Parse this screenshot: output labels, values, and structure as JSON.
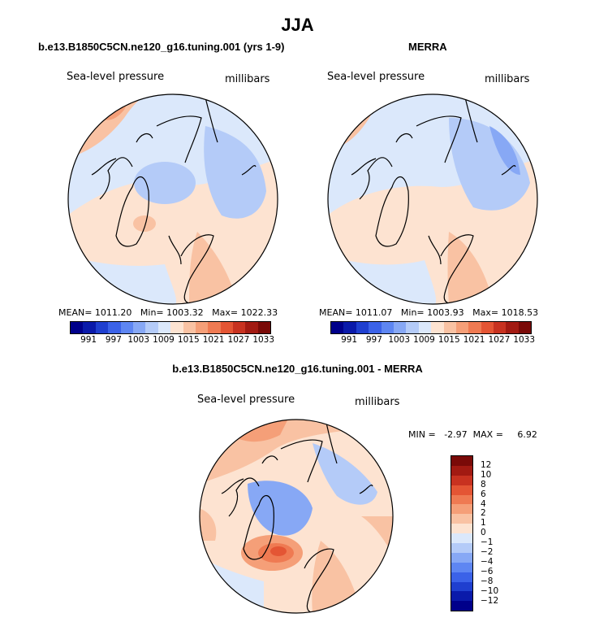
{
  "title": "JJA",
  "panels": [
    {
      "id": "model",
      "title": "b.e13.B1850C5CN.ne120_g16.tuning.001 (yrs 1-9)",
      "variable": "Sea-level pressure",
      "units": "millibars",
      "stats": {
        "mean": "MEAN= 1011.20",
        "min": "Min= 1003.32",
        "max": "Max= 1022.33"
      }
    },
    {
      "id": "obs",
      "title": "MERRA",
      "variable": "Sea-level pressure",
      "units": "millibars",
      "stats": {
        "mean": "MEAN= 1011.07",
        "min": "Min= 1003.93",
        "max": "Max= 1018.53"
      }
    },
    {
      "id": "diff",
      "title": "b.e13.B1850C5CN.ne120_g16.tuning.001 - MERRA",
      "variable": "Sea-level pressure",
      "units": "millibars",
      "stats": {
        "min": "MIN =",
        "min_value": "-2.97",
        "max": "MAX =",
        "max_value": "6.92"
      }
    }
  ],
  "colorbar_abs": {
    "colors": [
      "#00008a",
      "#0a1aaa",
      "#1f3fcf",
      "#3b62e8",
      "#5e86f2",
      "#87a8f5",
      "#b4cbf8",
      "#dbe8fb",
      "#fde3d1",
      "#f9c2a3",
      "#f59f78",
      "#ef7a52",
      "#e45534",
      "#c83220",
      "#a21a12",
      "#7a0a08"
    ],
    "ticks": [
      "991",
      "997",
      "1003",
      "1009",
      "1015",
      "1021",
      "1027",
      "1033"
    ]
  },
  "colorbar_diff": {
    "colors": [
      "#00008a",
      "#0a1aaa",
      "#1f3fcf",
      "#3b62e8",
      "#5e86f2",
      "#87a8f5",
      "#b4cbf8",
      "#dbe8fb",
      "#fde3d1",
      "#f9c2a3",
      "#f59f78",
      "#ef7a52",
      "#e45534",
      "#c83220",
      "#a21a12",
      "#7a0a08"
    ],
    "ticks": [
      "12",
      "10",
      "8",
      "6",
      "4",
      "2",
      "1",
      "0",
      "−1",
      "−2",
      "−4",
      "−6",
      "−8",
      "−10",
      "−12"
    ]
  }
}
